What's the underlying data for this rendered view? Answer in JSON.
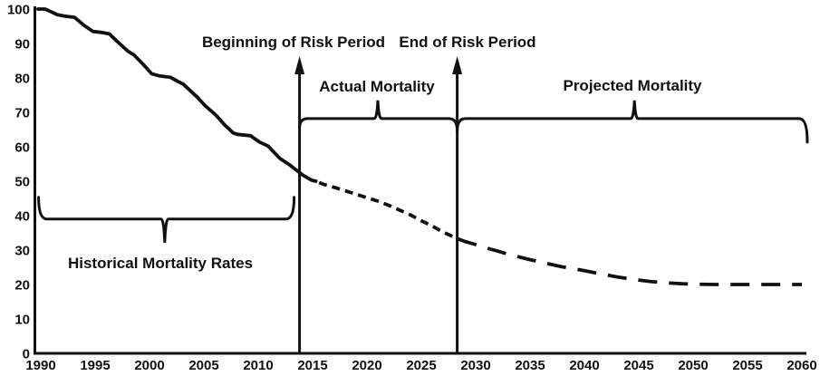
{
  "figure": {
    "background": "#ffffff",
    "ink": "#111111"
  },
  "chart_data": {
    "type": "line",
    "title": "",
    "xlabel": "",
    "ylabel": "",
    "xlim": [
      1990,
      2060
    ],
    "ylim": [
      0,
      100
    ],
    "grid": false,
    "legend": "none (inline brace/arrow annotations)",
    "x_ticks": [
      1990,
      1995,
      2000,
      2005,
      2010,
      2015,
      2020,
      2025,
      2030,
      2035,
      2040,
      2045,
      2050,
      2055,
      2060
    ],
    "y_ticks": [
      0,
      10,
      20,
      30,
      40,
      50,
      60,
      70,
      80,
      90,
      100
    ],
    "series": [
      {
        "name": "Historical Mortality Rates",
        "style": "solid",
        "points": [
          [
            1989.75,
            100
          ],
          [
            1990.4,
            100
          ],
          [
            1990.9,
            99.3
          ],
          [
            1991.5,
            98.4
          ],
          [
            1992.1,
            98
          ],
          [
            1993.1,
            97.6
          ],
          [
            1994,
            95.2
          ],
          [
            1994.8,
            93.5
          ],
          [
            1995.6,
            93.2
          ],
          [
            1996.3,
            92.8
          ],
          [
            1997.1,
            90.4
          ],
          [
            1998,
            87.8
          ],
          [
            1998.6,
            86.6
          ],
          [
            1999.4,
            84
          ],
          [
            2000.2,
            81.2
          ],
          [
            2000.9,
            80.6
          ],
          [
            2001.9,
            80.2
          ],
          [
            2002.6,
            79
          ],
          [
            2003.1,
            78.2
          ],
          [
            2004.4,
            74.4
          ],
          [
            2005.1,
            72
          ],
          [
            2006.1,
            69.2
          ],
          [
            2006.9,
            66.4
          ],
          [
            2007.7,
            64
          ],
          [
            2008.1,
            63.6
          ],
          [
            2009.3,
            63.2
          ],
          [
            2010.1,
            61.4
          ],
          [
            2010.9,
            60.2
          ],
          [
            2012,
            56.6
          ],
          [
            2012.9,
            54.7
          ],
          [
            2013.6,
            53
          ],
          [
            2014.1,
            51.8
          ],
          [
            2014.9,
            50.3
          ],
          [
            2015.3,
            50
          ]
        ]
      },
      {
        "name": "Actual Mortality (risk period)",
        "style": "dashed-short",
        "points": [
          [
            2015.6,
            49.6
          ],
          [
            2016,
            49.1
          ],
          [
            2017,
            48.2
          ],
          [
            2018,
            47.2
          ],
          [
            2019,
            46.2
          ],
          [
            2020,
            45.2
          ],
          [
            2021,
            44.2
          ],
          [
            2022,
            43
          ],
          [
            2023,
            41.6
          ],
          [
            2024,
            40.2
          ],
          [
            2025,
            38.5
          ],
          [
            2026,
            37
          ],
          [
            2027,
            35.2
          ],
          [
            2028,
            33.8
          ],
          [
            2028.4,
            33.2
          ]
        ]
      },
      {
        "name": "Projected Mortality",
        "style": "dashed-long",
        "points": [
          [
            2028.4,
            33.2
          ],
          [
            2029,
            32.5
          ],
          [
            2030,
            31.6
          ],
          [
            2031,
            30.6
          ],
          [
            2032,
            29.7
          ],
          [
            2033,
            28.8
          ],
          [
            2034,
            28
          ],
          [
            2035,
            27.2
          ],
          [
            2036,
            26.5
          ],
          [
            2037,
            25.8
          ],
          [
            2038,
            25.1
          ],
          [
            2039,
            24.6
          ],
          [
            2040,
            24
          ],
          [
            2041,
            23.4
          ],
          [
            2042,
            22.8
          ],
          [
            2043,
            22.2
          ],
          [
            2044,
            21.7
          ],
          [
            2045,
            21.3
          ],
          [
            2046,
            20.9
          ],
          [
            2047,
            20.6
          ],
          [
            2048,
            20.4
          ],
          [
            2049,
            20.2
          ],
          [
            2050,
            20.1
          ],
          [
            2052,
            20
          ],
          [
            2055,
            20
          ],
          [
            2058,
            20
          ],
          [
            2060,
            20
          ]
        ]
      }
    ],
    "markers": [
      {
        "label": "Beginning of Risk Period",
        "year": 2013.8
      },
      {
        "label": "End of Risk Period",
        "year": 2028.3
      }
    ],
    "braces": [
      {
        "label": "Historical Mortality Rates",
        "from_year": 1989.8,
        "to_year": 2013.3,
        "mid_year": 2001.4,
        "value": 39,
        "direction": "down",
        "end_hook": [
          24,
          24
        ],
        "spike": 26
      },
      {
        "label": "Actual Mortality",
        "from_year": 2013.8,
        "to_year": 2028.3,
        "mid_year": 2021,
        "value": 68.2,
        "direction": "up",
        "end_hook": [
          10,
          14
        ],
        "spike": 20
      },
      {
        "label": "Projected Mortality",
        "from_year": 2028.3,
        "to_year": 2060.5,
        "mid_year": 2044.6,
        "value": 68.2,
        "direction": "up",
        "end_hook": [
          14,
          26
        ],
        "spike": 20
      }
    ]
  }
}
